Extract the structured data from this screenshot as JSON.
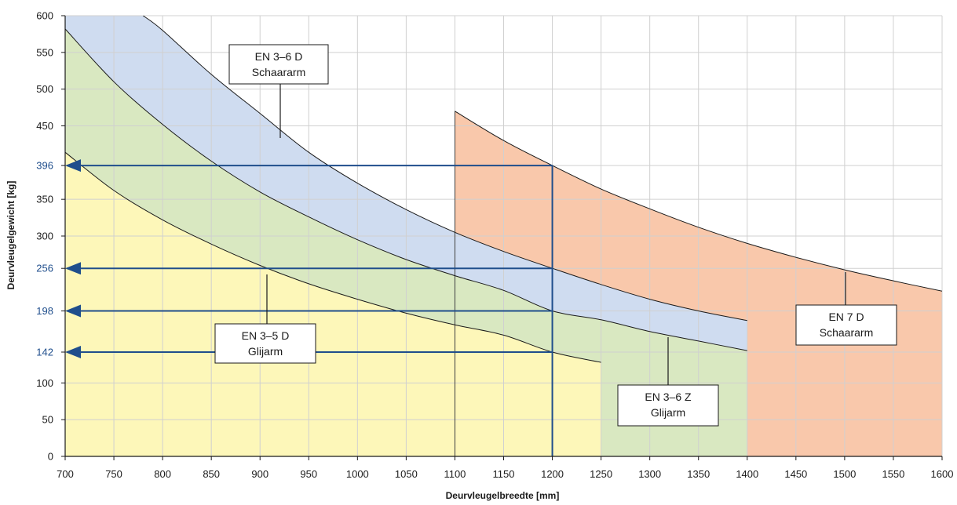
{
  "chart_data": {
    "type": "area",
    "xlabel": "Deurvleugelbreedte [mm]",
    "ylabel": "Deurvleugelgewicht [kg]",
    "xlim": [
      700,
      1600
    ],
    "ylim": [
      0,
      600
    ],
    "x_ticks": [
      "700",
      "750",
      "800",
      "850",
      "900",
      "950",
      "1000",
      "1050",
      "1100",
      "1150",
      "1200",
      "1250",
      "1300",
      "1350",
      "1400",
      "1450",
      "1500",
      "1550",
      "1600"
    ],
    "y_ticks": [
      "0",
      "50",
      "100",
      "142",
      "198",
      "256",
      "300",
      "350",
      "396",
      "450",
      "500",
      "550",
      "600"
    ],
    "y_ticks_highlighted": [
      "142",
      "198",
      "256",
      "396"
    ],
    "grid": true,
    "series": [
      {
        "name": "EN 3–5 D Glijarm",
        "color": "#fdf7b9",
        "x": [
          700,
          750,
          800,
          850,
          900,
          950,
          1000,
          1050,
          1100,
          1150,
          1200,
          1250
        ],
        "y": [
          414,
          362,
          322,
          289,
          260,
          235,
          214,
          195,
          179,
          165,
          142,
          128
        ]
      },
      {
        "name": "EN 3–6 Z Glijarm",
        "color": "#d9e8c1",
        "x": [
          700,
          750,
          800,
          850,
          900,
          950,
          1000,
          1050,
          1100,
          1150,
          1200,
          1250,
          1300,
          1350,
          1400
        ],
        "y": [
          582,
          510,
          452,
          402,
          360,
          326,
          295,
          268,
          246,
          226,
          198,
          186,
          170,
          157,
          144
        ]
      },
      {
        "name": "EN 3–6 D Schaararm",
        "color": "#cfdcf0",
        "x": [
          780,
          800,
          850,
          900,
          950,
          1000,
          1050,
          1100,
          1150,
          1200,
          1250,
          1300,
          1350,
          1400
        ],
        "y": [
          600,
          580,
          520,
          467,
          414,
          372,
          336,
          305,
          279,
          256,
          234,
          214,
          198,
          185
        ]
      },
      {
        "name": "EN 7 D Schaararm",
        "color": "#f9c8ab",
        "x": [
          1100,
          1150,
          1200,
          1250,
          1300,
          1350,
          1400,
          1450,
          1500,
          1550,
          1600
        ],
        "y": [
          470,
          430,
          396,
          364,
          337,
          312,
          290,
          271,
          254,
          239,
          225
        ]
      }
    ],
    "labels": [
      {
        "line1": "EN 3–6 D",
        "line2": "Schaararm"
      },
      {
        "line1": "EN 3–5 D",
        "line2": "Glijarm"
      },
      {
        "line1": "EN 3–6 Z",
        "line2": "Glijarm"
      },
      {
        "line1": "EN 7 D",
        "line2": "Schaararm"
      }
    ],
    "reference_width": 1200,
    "reference_weights": [
      396,
      256,
      198,
      142
    ],
    "colors": {
      "reference": "#1f4e8c",
      "boundary": "#1a1a1a",
      "grid": "#d0d0d0"
    }
  }
}
